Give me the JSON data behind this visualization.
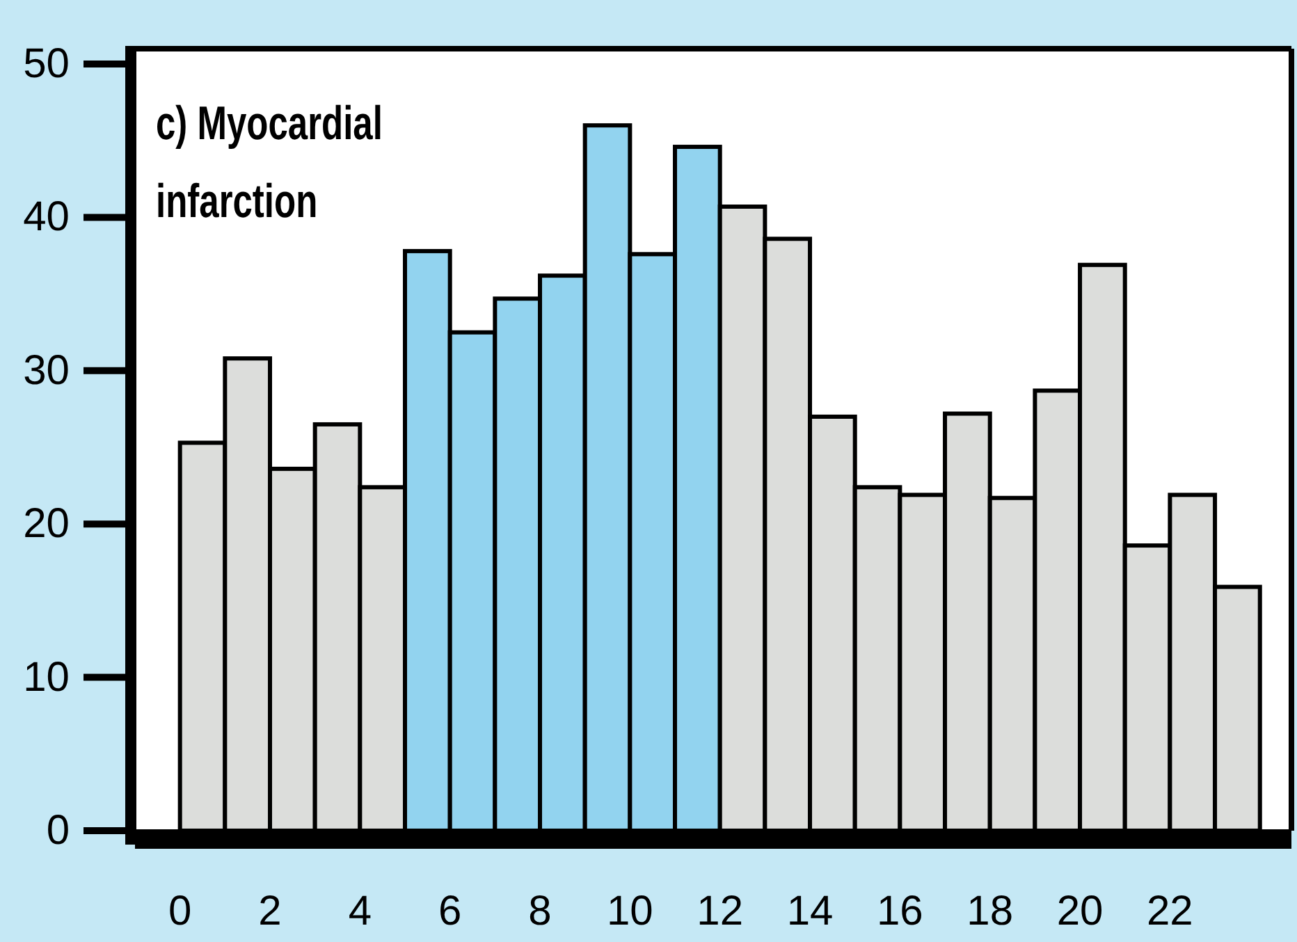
{
  "chart_data": {
    "type": "histogram",
    "title": "c) Myocardial infarction",
    "bins": [
      0,
      1,
      2,
      3,
      4,
      5,
      6,
      7,
      8,
      9,
      10,
      11,
      12,
      13,
      14,
      15,
      16,
      17,
      18,
      19,
      20,
      21,
      22,
      23,
      24
    ],
    "values": [
      25.3,
      30.8,
      23.6,
      26.5,
      22.4,
      37.8,
      32.5,
      34.7,
      36.2,
      46.0,
      37.6,
      44.6,
      40.7,
      38.6,
      27.0,
      22.4,
      21.9,
      27.2,
      21.7,
      28.7,
      36.9,
      18.6,
      21.9,
      15.9
    ],
    "colors": [
      "#dcdddb",
      "#dcdddb",
      "#dcdddb",
      "#dcdddb",
      "#dcdddb",
      "#92d3ef",
      "#92d3ef",
      "#92d3ef",
      "#92d3ef",
      "#92d3ef",
      "#92d3ef",
      "#92d3ef",
      "#dcdddb",
      "#dcdddb",
      "#dcdddb",
      "#dcdddb",
      "#dcdddb",
      "#dcdddb",
      "#dcdddb",
      "#dcdddb",
      "#dcdddb",
      "#dcdddb",
      "#dcdddb",
      "#dcdddb"
    ],
    "xlim": [
      -1,
      24.7
    ],
    "xticks": [
      0,
      2,
      4,
      6,
      8,
      10,
      12,
      14,
      16,
      18,
      20,
      22
    ],
    "ylim": [
      0,
      51
    ],
    "yticks": [
      0,
      10,
      20,
      30,
      40,
      50
    ],
    "grid": false
  }
}
